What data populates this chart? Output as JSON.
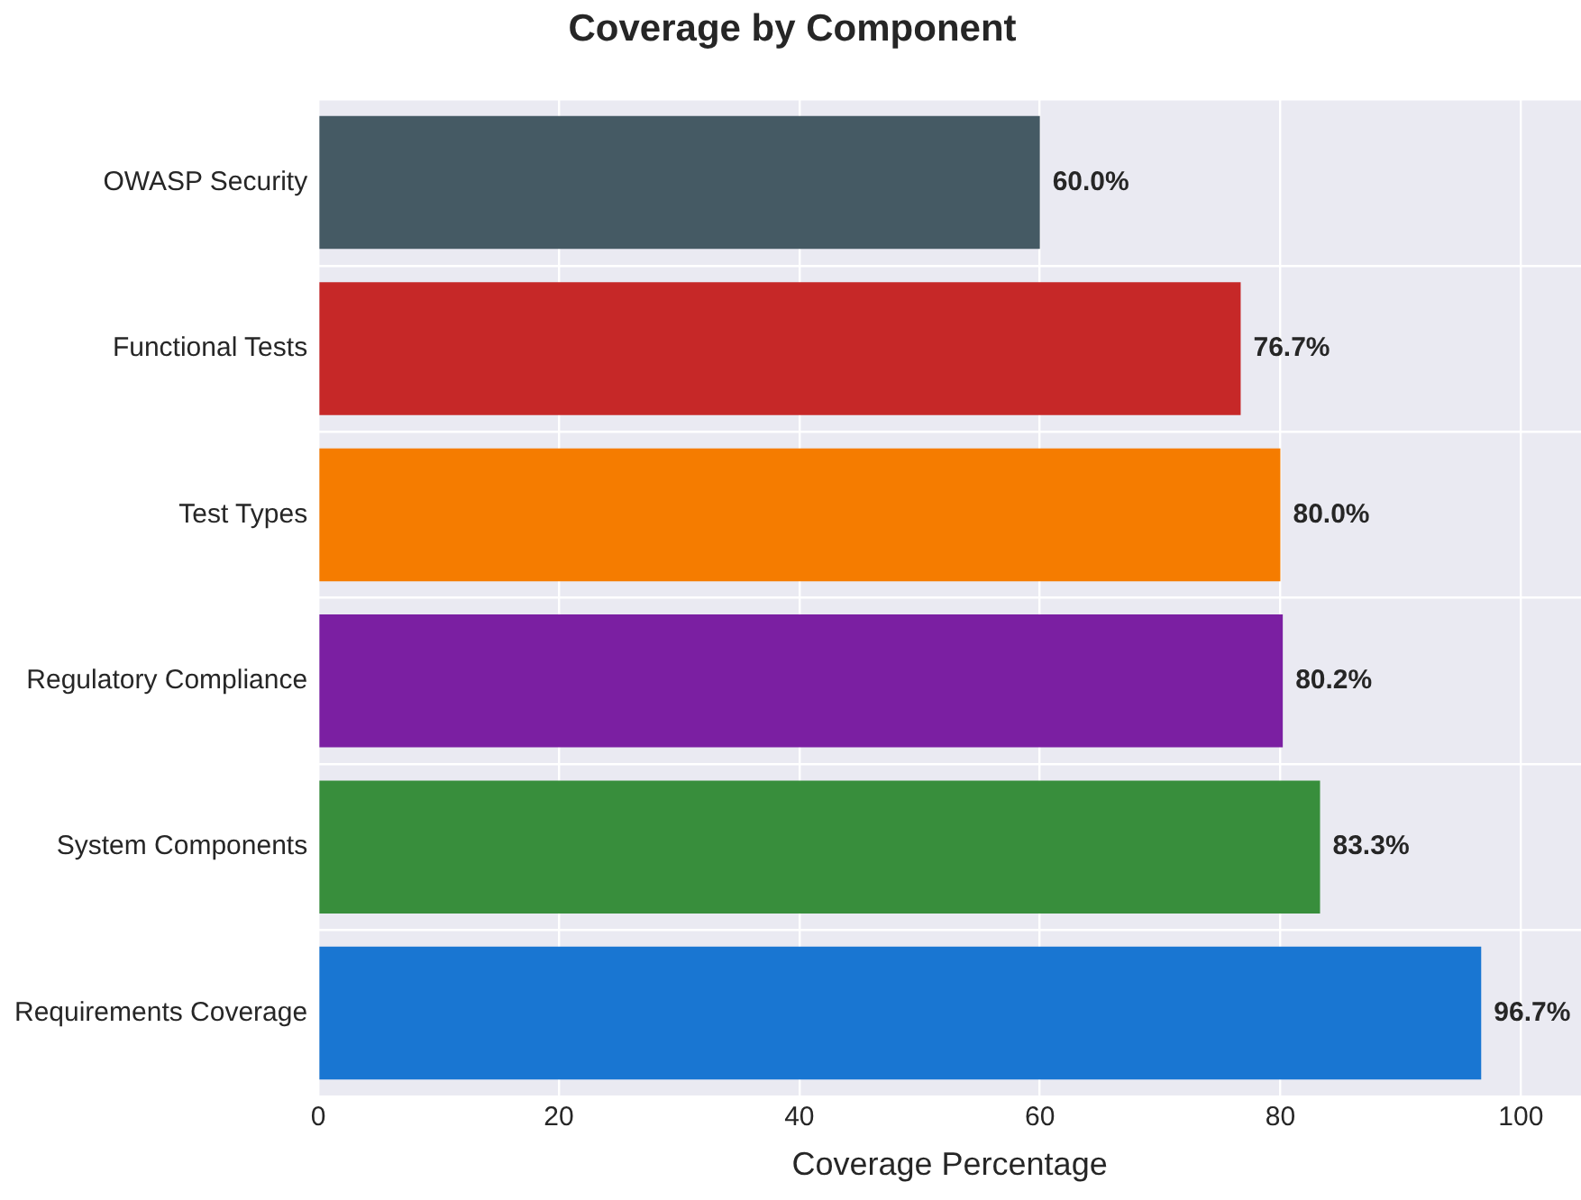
{
  "chart_data": {
    "type": "bar",
    "orientation": "horizontal",
    "title": "Coverage by Component",
    "xlabel": "Coverage Percentage",
    "categories": [
      "OWASP Security",
      "Functional Tests",
      "Test Types",
      "Regulatory Compliance",
      "System Components",
      "Requirements Coverage"
    ],
    "values": [
      60.0,
      76.7,
      80.0,
      80.2,
      83.3,
      96.7
    ],
    "colors": [
      "#455a64",
      "#c62828",
      "#f57c00",
      "#7b1fa2",
      "#388e3c",
      "#1976d2"
    ],
    "value_labels": [
      "60.0%",
      "76.7%",
      "80.0%",
      "80.2%",
      "83.3%",
      "96.7%"
    ],
    "xlim": [
      0,
      105
    ],
    "xticks": [
      0,
      20,
      40,
      60,
      80,
      100
    ],
    "grid": true
  }
}
